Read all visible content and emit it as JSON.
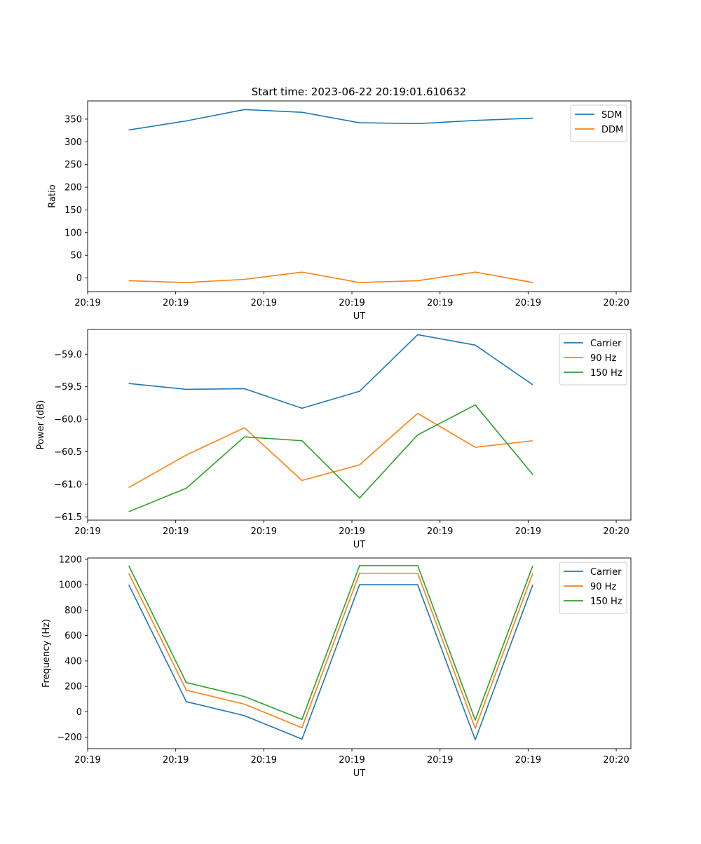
{
  "figure_title": "Start time: 2023-06-22 20:19:01.610632",
  "colors": {
    "blue": "#1f77b4",
    "orange": "#ff7f0e",
    "green": "#2ca02c"
  },
  "chart_data": [
    {
      "type": "line",
      "xlabel": "UT",
      "ylabel": "Ratio",
      "xlim": [
        0,
        9.25
      ],
      "ylim": [
        -30,
        390
      ],
      "yticks": [
        0,
        50,
        100,
        150,
        200,
        250,
        300,
        350
      ],
      "xticks": [
        0.0,
        1.5,
        3.0,
        4.5,
        6.0,
        7.5,
        9.0
      ],
      "xtick_labels": [
        "20:19",
        "20:19",
        "20:19",
        "20:19",
        "20:19",
        "20:19",
        "20:20"
      ],
      "legend_position": "top-right",
      "x": [
        0.7,
        1.68,
        2.67,
        3.65,
        4.63,
        5.62,
        6.6,
        7.58
      ],
      "series": [
        {
          "name": "SDM",
          "color": "#1f77b4",
          "values": [
            326,
            346,
            371,
            365,
            342,
            340,
            347,
            352
          ]
        },
        {
          "name": "DDM",
          "color": "#ff7f0e",
          "values": [
            -6,
            -10,
            -3,
            13,
            -10,
            -6,
            13,
            -10
          ]
        }
      ]
    },
    {
      "type": "line",
      "xlabel": "UT",
      "ylabel": "Power (dB)",
      "xlim": [
        0,
        9.25
      ],
      "ylim": [
        -61.55,
        -58.62
      ],
      "yticks": [
        -61.5,
        -61.0,
        -60.5,
        -60.0,
        -59.5,
        -59.0
      ],
      "ytick_labels": [
        "−61.5",
        "−61.0",
        "−60.5",
        "−60.0",
        "−59.5",
        "−59.0"
      ],
      "xticks": [
        0.0,
        1.5,
        3.0,
        4.5,
        6.0,
        7.5,
        9.0
      ],
      "xtick_labels": [
        "20:19",
        "20:19",
        "20:19",
        "20:19",
        "20:19",
        "20:19",
        "20:20"
      ],
      "legend_position": "top-right",
      "x": [
        0.7,
        1.68,
        2.67,
        3.65,
        4.63,
        5.62,
        6.6,
        7.58
      ],
      "series": [
        {
          "name": "Carrier",
          "color": "#1f77b4",
          "values": [
            -59.45,
            -59.54,
            -59.53,
            -59.83,
            -59.57,
            -58.7,
            -58.86,
            -59.47
          ]
        },
        {
          "name": "90 Hz",
          "color": "#ff7f0e",
          "values": [
            -61.05,
            -60.55,
            -60.13,
            -60.94,
            -60.7,
            -59.91,
            -60.43,
            -60.33
          ]
        },
        {
          "name": "150 Hz",
          "color": "#2ca02c",
          "values": [
            -61.42,
            -61.06,
            -60.27,
            -60.33,
            -61.21,
            -60.24,
            -59.78,
            -60.85
          ]
        }
      ]
    },
    {
      "type": "line",
      "xlabel": "UT",
      "ylabel": "Frequency (Hz)",
      "xlim": [
        0,
        9.25
      ],
      "ylim": [
        -290,
        1210
      ],
      "yticks": [
        -200,
        0,
        200,
        400,
        600,
        800,
        1000,
        1200
      ],
      "ytick_labels": [
        "−200",
        "0",
        "200",
        "400",
        "600",
        "800",
        "1000",
        "1200"
      ],
      "xticks": [
        0.0,
        1.5,
        3.0,
        4.5,
        6.0,
        7.5,
        9.0
      ],
      "xtick_labels": [
        "20:19",
        "20:19",
        "20:19",
        "20:19",
        "20:19",
        "20:19",
        "20:20"
      ],
      "legend_position": "top-right",
      "x": [
        0.7,
        1.68,
        2.67,
        3.65,
        4.63,
        5.62,
        6.6,
        7.58
      ],
      "series": [
        {
          "name": "Carrier",
          "color": "#1f77b4",
          "values": [
            1000,
            80,
            -30,
            -215,
            1000,
            1000,
            -220,
            1000
          ]
        },
        {
          "name": "90 Hz",
          "color": "#ff7f0e",
          "values": [
            1090,
            170,
            60,
            -125,
            1090,
            1090,
            -130,
            1090
          ]
        },
        {
          "name": "150 Hz",
          "color": "#2ca02c",
          "values": [
            1150,
            230,
            120,
            -60,
            1150,
            1150,
            -65,
            1150
          ]
        }
      ]
    }
  ]
}
